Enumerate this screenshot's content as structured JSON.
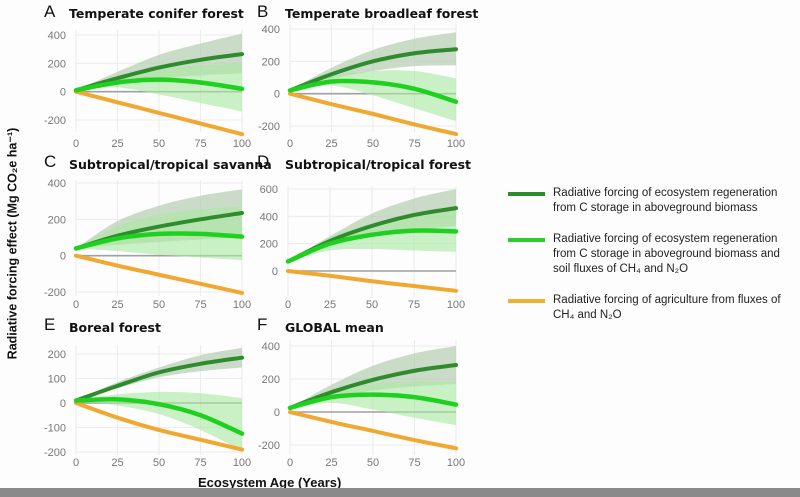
{
  "chart_data": [
    {
      "id": "A",
      "type": "line",
      "letter": "A",
      "title": "Temperate conifer forest",
      "x": [
        0,
        25,
        50,
        75,
        100
      ],
      "xlim": [
        0,
        100
      ],
      "ylim": [
        -300,
        420
      ],
      "yticks": [
        -200,
        0,
        200,
        400
      ],
      "xticks": [
        0,
        25,
        50,
        75,
        100
      ],
      "series": [
        {
          "name": "aboveground",
          "values": [
            10,
            95,
            170,
            225,
            265
          ],
          "lower": [
            10,
            60,
            95,
            115,
            130
          ],
          "upper": [
            10,
            140,
            260,
            340,
            410
          ]
        },
        {
          "name": "aboveground+soil",
          "values": [
            10,
            65,
            85,
            65,
            20
          ],
          "lower": [
            10,
            30,
            -20,
            -80,
            -140
          ],
          "upper": [
            10,
            110,
            165,
            185,
            195
          ]
        },
        {
          "name": "agriculture",
          "values": [
            0,
            -75,
            -150,
            -225,
            -300
          ]
        }
      ]
    },
    {
      "id": "B",
      "type": "line",
      "letter": "B",
      "title": "Temperate broadleaf forest",
      "x": [
        0,
        25,
        50,
        75,
        100
      ],
      "xlim": [
        0,
        100
      ],
      "ylim": [
        -270,
        420
      ],
      "yticks": [
        -200,
        0,
        200,
        400
      ],
      "xticks": [
        0,
        25,
        50,
        75,
        100
      ],
      "series": [
        {
          "name": "aboveground",
          "values": [
            20,
            120,
            200,
            250,
            275
          ],
          "lower": [
            20,
            90,
            140,
            170,
            175
          ],
          "upper": [
            20,
            160,
            270,
            340,
            380
          ]
        },
        {
          "name": "aboveground+soil",
          "values": [
            20,
            75,
            70,
            30,
            -50
          ],
          "lower": [
            20,
            50,
            -10,
            -90,
            -170
          ],
          "upper": [
            20,
            105,
            140,
            140,
            95
          ]
        },
        {
          "name": "agriculture",
          "values": [
            0,
            -65,
            -125,
            -190,
            -250
          ]
        }
      ]
    },
    {
      "id": "C",
      "type": "line",
      "letter": "C",
      "title": "Subtropical/tropical savanna",
      "x": [
        0,
        25,
        50,
        75,
        100
      ],
      "xlim": [
        0,
        100
      ],
      "ylim": [
        -210,
        410
      ],
      "yticks": [
        -200,
        0,
        200,
        400
      ],
      "xticks": [
        0,
        25,
        50,
        75,
        100
      ],
      "series": [
        {
          "name": "aboveground",
          "values": [
            40,
            110,
            160,
            200,
            235
          ],
          "lower": [
            40,
            60,
            75,
            90,
            100
          ],
          "upper": [
            40,
            190,
            275,
            330,
            365
          ]
        },
        {
          "name": "aboveground+soil",
          "values": [
            40,
            95,
            120,
            120,
            105
          ],
          "lower": [
            40,
            25,
            5,
            -10,
            -25
          ],
          "upper": [
            40,
            160,
            225,
            255,
            270
          ]
        },
        {
          "name": "agriculture",
          "values": [
            0,
            -55,
            -105,
            -155,
            -205
          ]
        }
      ]
    },
    {
      "id": "D",
      "type": "line",
      "letter": "D",
      "title": "Subtropical/tropical forest",
      "x": [
        0,
        25,
        50,
        75,
        100
      ],
      "xlim": [
        0,
        100
      ],
      "ylim": [
        -150,
        610
      ],
      "yticks": [
        0,
        200,
        400,
        600
      ],
      "xticks": [
        0,
        25,
        50,
        75,
        100
      ],
      "series": [
        {
          "name": "aboveground",
          "values": [
            70,
            220,
            330,
            410,
            460
          ],
          "lower": [
            70,
            190,
            260,
            300,
            330
          ],
          "upper": [
            70,
            255,
            420,
            530,
            600
          ]
        },
        {
          "name": "aboveground+soil",
          "values": [
            70,
            200,
            265,
            295,
            290
          ],
          "lower": [
            70,
            150,
            160,
            150,
            140
          ],
          "upper": [
            70,
            245,
            350,
            410,
            440
          ]
        },
        {
          "name": "agriculture",
          "values": [
            0,
            -35,
            -75,
            -110,
            -145
          ]
        }
      ]
    },
    {
      "id": "E",
      "type": "line",
      "letter": "E",
      "title": "Boreal forest",
      "x": [
        0,
        25,
        50,
        75,
        100
      ],
      "xlim": [
        0,
        100
      ],
      "ylim": [
        -200,
        230
      ],
      "yticks": [
        -200,
        -100,
        0,
        100,
        200
      ],
      "xticks": [
        0,
        25,
        50,
        75,
        100
      ],
      "series": [
        {
          "name": "aboveground",
          "values": [
            10,
            70,
            125,
            160,
            185
          ],
          "lower": [
            10,
            60,
            105,
            130,
            145
          ],
          "upper": [
            10,
            85,
            145,
            195,
            225
          ]
        },
        {
          "name": "aboveground+soil",
          "values": [
            10,
            15,
            -5,
            -50,
            -125
          ],
          "lower": [
            10,
            -10,
            -45,
            -110,
            -195
          ],
          "upper": [
            10,
            35,
            45,
            40,
            20
          ]
        },
        {
          "name": "agriculture",
          "values": [
            0,
            -60,
            -110,
            -150,
            -190
          ]
        }
      ]
    },
    {
      "id": "F",
      "type": "line",
      "letter": "F",
      "title": "GLOBAL mean",
      "x": [
        0,
        25,
        50,
        75,
        100
      ],
      "xlim": [
        0,
        100
      ],
      "ylim": [
        -230,
        420
      ],
      "yticks": [
        -200,
        0,
        200,
        400
      ],
      "xticks": [
        0,
        25,
        50,
        75,
        100
      ],
      "series": [
        {
          "name": "aboveground",
          "values": [
            25,
            120,
            195,
            250,
            285
          ],
          "lower": [
            25,
            85,
            130,
            155,
            170
          ],
          "upper": [
            25,
            165,
            280,
            355,
            400
          ]
        },
        {
          "name": "aboveground+soil",
          "values": [
            25,
            90,
            105,
            90,
            45
          ],
          "lower": [
            25,
            55,
            15,
            -35,
            -80
          ],
          "upper": [
            25,
            125,
            170,
            185,
            180
          ]
        },
        {
          "name": "agriculture",
          "values": [
            0,
            -60,
            -115,
            -170,
            -220
          ]
        }
      ]
    }
  ],
  "axes": {
    "ylabel": "Radiative forcing effect (Mg CO₂e ha⁻¹)",
    "xlabel": "Ecosystem Age (Years)"
  },
  "legend": [
    {
      "label": "Radiative forcing of ecosystem regeneration from C storage in aboveground biomass",
      "color": "#2e8b2e"
    },
    {
      "label": "Radiative forcing of ecosystem regeneration from C storage in aboveground biomass and soil fluxes of CH₄ and N₂O",
      "color": "#2ecc2e"
    },
    {
      "label": "Radiative forcing of agriculture from fluxes of CH₄ and N₂O",
      "color": "#f2b030"
    }
  ],
  "colors": {
    "dark_green": "#2e8b2e",
    "bright_green": "#1fd11f",
    "orange": "#f0a830",
    "dark_band": "#b8cfb5",
    "light_band": "#a8e8a0",
    "zero_line": "#a0a0a0",
    "grid": "#ececec"
  }
}
